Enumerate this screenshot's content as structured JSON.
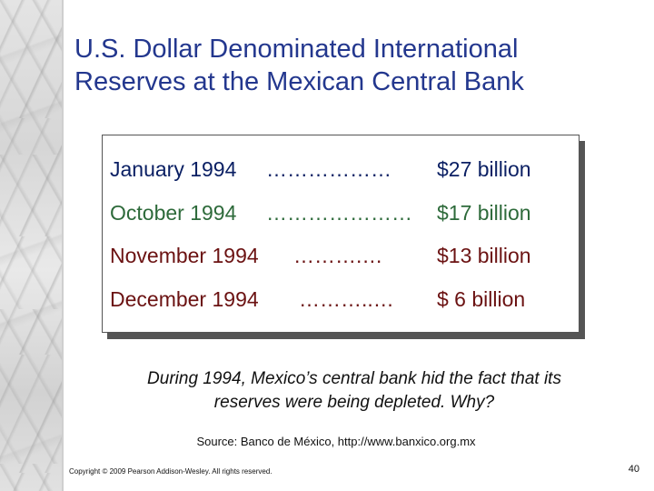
{
  "title": {
    "line1": "U.S. Dollar Denominated International",
    "line2": "Reserves at the Mexican Central Bank"
  },
  "reserves": [
    {
      "period": "January 1994",
      "dots": "………………",
      "amount": "$27 billion"
    },
    {
      "period": "October 1994",
      "dots": "…………………",
      "amount": "$17 billion"
    },
    {
      "period": "November 1994",
      "dots": "……….…",
      "amount": "$13 billion"
    },
    {
      "period": "December 1994",
      "dots": "………..…",
      "amount": "$ 6 billion"
    }
  ],
  "question": {
    "line1": "During 1994, Mexico’s central bank hid the fact that its",
    "line2": "reserves were being depleted.  Why?"
  },
  "source": "Source: Banco de México, http://www.banxico.org.mx",
  "copyright": "Copyright © 2009 Pearson Addison-Wesley. All rights reserved.",
  "page_number": "40",
  "colors": {
    "title": "#23378e",
    "row_january": "#0a1f63",
    "row_october": "#2d6a3a",
    "row_nov_dec": "#6b1212"
  }
}
